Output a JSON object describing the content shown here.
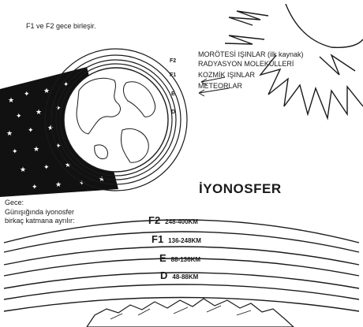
{
  "top_left_note": "F1 ve F2 gece birleşir.",
  "sources": [
    "MORÖTESİ IŞINLAR (ilk kaynak)",
    "RADYASYON MOLEKÜLLERİ",
    "KOZMİK IŞINLAR",
    "METEORLAR"
  ],
  "ring_tags": [
    "F2",
    "F1",
    "E",
    "D"
  ],
  "title": "İYONOSFER",
  "night_label": "Gece:",
  "day_note": "Günışığında iyonosfer\nbirkaç katmana ayrılır:",
  "layers": [
    {
      "name": "F2",
      "range": "248-400KM"
    },
    {
      "name": "F1",
      "range": "136-248KM"
    },
    {
      "name": "E",
      "range": "88-136KM"
    },
    {
      "name": "D",
      "range": "48-88KM"
    }
  ],
  "colors": {
    "ink": "#1a1a1a",
    "paper": "#ffffff"
  },
  "icons": [
    "sun-icon",
    "earth-globe-icon",
    "night-shadow-stars-icon",
    "mountain-landscape-icon"
  ]
}
